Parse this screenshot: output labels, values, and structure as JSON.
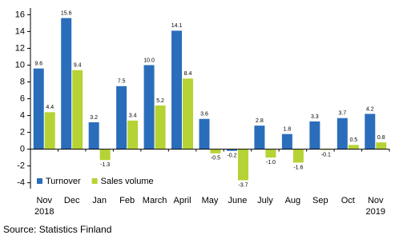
{
  "chart_data": {
    "type": "bar",
    "categories": [
      "Nov",
      "Dec",
      "Jan",
      "Feb",
      "March",
      "April",
      "May",
      "June",
      "July",
      "Aug",
      "Sep",
      "Oct",
      "Nov"
    ],
    "category_years": [
      "2018",
      null,
      null,
      null,
      null,
      null,
      null,
      null,
      null,
      null,
      null,
      null,
      "2019"
    ],
    "series": [
      {
        "name": "Turnover",
        "color": "#2a6ebb",
        "values": [
          9.6,
          15.6,
          3.2,
          7.5,
          10.0,
          14.1,
          3.6,
          -0.2,
          2.8,
          1.8,
          3.3,
          3.7,
          4.2
        ],
        "value_labels": [
          "9.6",
          "15.6",
          "3.2",
          "7.5",
          "10.0",
          "14.1",
          "3.6",
          "-0.2",
          "2.8",
          "1.8",
          "3.3",
          "3.7",
          "4.2"
        ]
      },
      {
        "name": "Sales volume",
        "color": "#b5d334",
        "values": [
          4.4,
          9.4,
          -1.3,
          3.4,
          5.2,
          8.4,
          -0.5,
          -3.7,
          -1.0,
          -1.6,
          -0.1,
          0.5,
          0.8
        ],
        "value_labels": [
          "4.4",
          "9.4",
          "-1.3",
          "3.4",
          "5.2",
          "8.4",
          "-0.5",
          "-3.7",
          "-1.0",
          "-1.6",
          "-0.1",
          "0.5",
          "0.8"
        ]
      }
    ],
    "ylim": [
      -4.7,
      16.8
    ],
    "yticks": [
      -4,
      -2,
      0,
      2,
      4,
      6,
      8,
      10,
      12,
      14,
      16
    ],
    "legend": "lower left",
    "source": "Source: Statistics Finland"
  }
}
